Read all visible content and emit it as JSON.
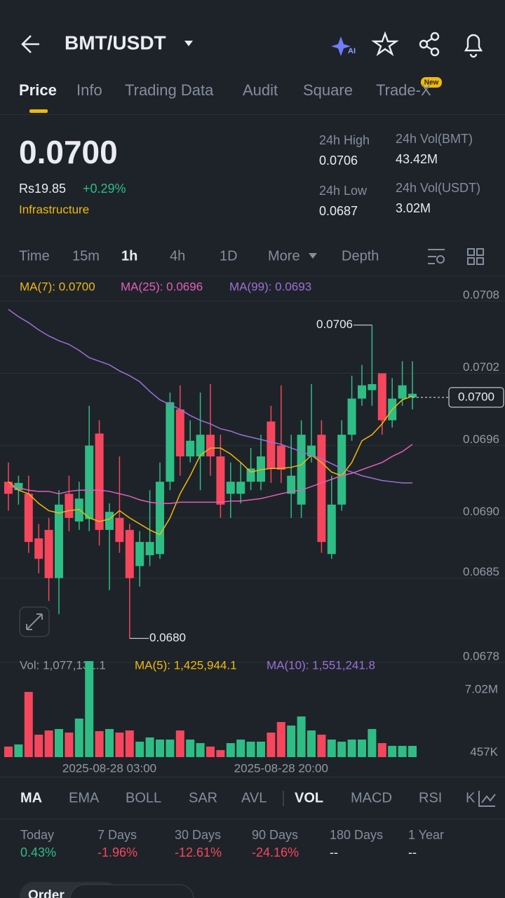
{
  "header": {
    "pair": "BMT/USDT",
    "tabs": [
      "Price",
      "Info",
      "Trading Data",
      "Audit",
      "Square",
      "Trade-X"
    ],
    "badge": "New"
  },
  "price": {
    "last": "0.0700",
    "local": "Rs19.85",
    "change": "+0.29%",
    "tag": "Infrastructure",
    "stats": [
      {
        "label": "24h High",
        "value": "0.0706"
      },
      {
        "label": "24h Vol(BMT)",
        "value": "43.42M"
      },
      {
        "label": "24h Low",
        "value": "0.0687"
      },
      {
        "label": "24h Vol(USDT)",
        "value": "3.02M"
      }
    ]
  },
  "intervals": [
    "Time",
    "15m",
    "1h",
    "4h",
    "1D",
    "More",
    "Depth"
  ],
  "indicators": [
    "MA",
    "EMA",
    "BOLL",
    "SAR",
    "AVL",
    "VOL",
    "MACD",
    "RSI",
    "K"
  ],
  "performance": [
    {
      "period": "Today",
      "change": "0.43%"
    },
    {
      "period": "7 Days",
      "change": "-1.96%"
    },
    {
      "period": "30 Days",
      "change": "-12.61%"
    },
    {
      "period": "90 Days",
      "change": "-24.16%"
    },
    {
      "period": "180 Days",
      "change": "--"
    },
    {
      "period": "1 Year",
      "change": "--"
    }
  ],
  "footer": {
    "tab": "Order"
  },
  "chart_data": [
    {
      "type": "candlestick",
      "categories": [
        null,
        null,
        null,
        null,
        null,
        null,
        null,
        null,
        null,
        null,
        "2025-08-28 03:00",
        null,
        null,
        null,
        null,
        null,
        null,
        null,
        null,
        null,
        null,
        null,
        null,
        null,
        null,
        null,
        null,
        "2025-08-28 20:00",
        null,
        null,
        null,
        null,
        null,
        null,
        null,
        null,
        null,
        null,
        null,
        null,
        null
      ],
      "candles": {
        "open": [
          0.0693,
          0.06923,
          0.0692,
          0.06883,
          0.0689,
          0.0685,
          0.0692,
          0.06897,
          0.06899,
          0.0697,
          0.0689,
          0.069,
          0.0689,
          0.0686,
          0.06869,
          0.0687,
          0.0693,
          0.0699,
          0.06951,
          0.06951,
          0.06969,
          0.06951,
          0.0692,
          0.0692,
          0.0693,
          0.0693,
          0.0698,
          0.0696,
          0.0692,
          0.06911,
          0.06951,
          0.06969,
          0.0687,
          0.06911,
          0.06969,
          0.06999,
          0.07006,
          0.0702,
          0.06981,
          0.06999,
          0.07
        ],
        "high": [
          0.06946,
          0.06935,
          0.06935,
          0.06895,
          0.069,
          0.06923,
          0.06935,
          0.0693,
          0.06993,
          0.06981,
          0.06912,
          0.06951,
          0.06895,
          0.06889,
          0.06923,
          0.06946,
          0.07004,
          0.0701,
          0.06981,
          0.07004,
          0.07011,
          0.06969,
          0.06946,
          0.06946,
          0.06958,
          0.06969,
          0.06993,
          0.0701,
          0.06969,
          0.06981,
          0.07011,
          0.06981,
          0.06935,
          0.06981,
          0.07018,
          0.07027,
          0.0706,
          0.0702,
          0.07016,
          0.0703,
          0.0703
        ],
        "low": [
          0.06906,
          0.06911,
          0.06871,
          0.06854,
          0.06831,
          0.0682,
          0.06889,
          0.0689,
          0.06889,
          0.06877,
          0.0684,
          0.06871,
          0.068,
          0.06843,
          0.0686,
          0.06866,
          0.06923,
          0.06935,
          0.06946,
          0.06923,
          0.06935,
          0.069,
          0.069,
          0.06912,
          0.06923,
          0.06923,
          0.06929,
          0.06929,
          0.069,
          0.069,
          0.06946,
          0.06871,
          0.06866,
          0.06906,
          0.06964,
          0.06993,
          0.06993,
          0.06969,
          0.06975,
          0.06993,
          0.0699
        ],
        "close": [
          0.0692,
          0.06929,
          0.0688,
          0.06866,
          0.0685,
          0.06911,
          0.069,
          0.06916,
          0.0696,
          0.0689,
          0.06905,
          0.0688,
          0.0685,
          0.0688,
          0.0688,
          0.0693,
          0.06996,
          0.06951,
          0.06964,
          0.06969,
          0.06951,
          0.06911,
          0.0693,
          0.0693,
          0.06941,
          0.06951,
          0.06941,
          0.0694,
          0.06935,
          0.06969,
          0.0696,
          0.0688,
          0.06911,
          0.06969,
          0.06999,
          0.0701,
          0.07011,
          0.06981,
          0.06999,
          0.0701,
          0.07003
        ]
      },
      "up_color": "#2ebd85",
      "down_color": "#f6465d",
      "lines": [
        {
          "name": "MA(7): 0.0700",
          "color": "#f0b90b",
          "values": [
            0.0693,
            0.06923,
            0.0692,
            0.06912,
            0.06906,
            0.06904,
            0.06906,
            0.06907,
            0.069,
            0.06897,
            0.06899,
            0.06906,
            0.069,
            0.06895,
            0.0689,
            0.06886,
            0.069,
            0.0692,
            0.06935,
            0.06952,
            0.06958,
            0.06958,
            0.06953,
            0.06946,
            0.06938,
            0.0694,
            0.06941,
            0.06941,
            0.06942,
            0.06944,
            0.06952,
            0.06946,
            0.06938,
            0.06935,
            0.06946,
            0.06964,
            0.06969,
            0.06978,
            0.0699,
            0.06998,
            0.07001
          ]
        },
        {
          "name": "MA(25): 0.0696",
          "color": "#e35fb8",
          "values": [
            0.06926,
            0.06925,
            0.06923,
            0.06922,
            0.06922,
            0.0692,
            0.06922,
            0.06923,
            0.06923,
            0.06923,
            0.06922,
            0.0692,
            0.06918,
            0.06915,
            0.06913,
            0.06912,
            0.06912,
            0.06913,
            0.06913,
            0.06913,
            0.06913,
            0.06913,
            0.06914,
            0.06914,
            0.06915,
            0.06916,
            0.06918,
            0.0692,
            0.06922,
            0.06923,
            0.06926,
            0.06929,
            0.06932,
            0.06935,
            0.06937,
            0.0694,
            0.06943,
            0.06946,
            0.06951,
            0.06955,
            0.06961
          ]
        },
        {
          "name": "MA(99): 0.0693",
          "color": "#9b70d6",
          "values": [
            0.07073,
            0.07067,
            0.07062,
            0.07056,
            0.07051,
            0.07047,
            0.07044,
            0.07039,
            0.07033,
            0.0703,
            0.07027,
            0.07022,
            0.07018,
            0.07013,
            0.07005,
            0.06998,
            0.06994,
            0.0699,
            0.06985,
            0.06981,
            0.06978,
            0.06974,
            0.06972,
            0.06969,
            0.06967,
            0.06965,
            0.06963,
            0.06961,
            0.06958,
            0.06955,
            0.06952,
            0.06949,
            0.06945,
            0.06941,
            0.06938,
            0.06935,
            0.06933,
            0.06931,
            0.0693,
            0.06929,
            0.06929
          ]
        }
      ],
      "ylim": [
        0.0678,
        0.071
      ],
      "yticks": [
        0.0708,
        0.0702,
        0.0696,
        {
          "value": 0.069,
          "label": "0.0690"
        },
        0.0685,
        0.0678
      ],
      "high_note": 0.0706,
      "low_note": {
        "value": 0.068,
        "label": "0.0680"
      },
      "last": {
        "value": 0.07,
        "label": "0.0700"
      }
    },
    {
      "type": "bar",
      "legend": [
        {
          "text": "Vol: 1,077,131.1",
          "color": "#929aa5"
        },
        {
          "text": "MA(5): 1,425,944.1",
          "color": "#f0b90b"
        },
        {
          "text": "MA(10): 1,551,241.8",
          "color": "#9b70d6"
        }
      ],
      "values": [
        1100000,
        1320000,
        6800000,
        2340000,
        2780000,
        2930000,
        2560000,
        4020000,
        10020000,
        2710000,
        2930000,
        2560000,
        2780000,
        1610000,
        2050000,
        1830000,
        1830000,
        2780000,
        1830000,
        1460000,
        1100000,
        730000,
        1460000,
        1830000,
        1610000,
        1610000,
        2560000,
        3660000,
        3290000,
        4240000,
        2780000,
        2340000,
        1830000,
        1610000,
        1830000,
        1830000,
        2930000,
        1460000,
        1170000,
        1170000,
        1170000
      ],
      "ylim": [
        0,
        10240000
      ],
      "yticks": [
        {
          "value": 7020000,
          "label": "7.02M"
        },
        {
          "value": 457000,
          "label": "457K"
        }
      ]
    }
  ]
}
